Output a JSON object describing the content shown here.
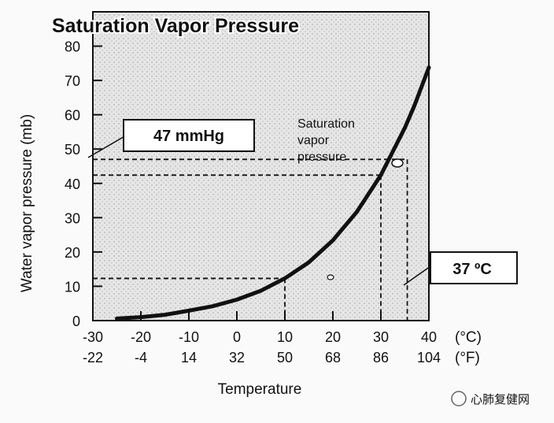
{
  "chart_data": {
    "type": "line",
    "title": "Saturation Vapor Pressure",
    "xlabel": "Temperature",
    "ylabel": "Water vapor pressure (mb)",
    "xlim": [
      -30,
      40
    ],
    "ylim": [
      0,
      90
    ],
    "x_ticks": [
      -30,
      -20,
      -10,
      0,
      10,
      20,
      30,
      40
    ],
    "x_tick_labels_c": [
      "-30",
      "-20",
      "-10",
      "0",
      "10",
      "20",
      "30",
      "40"
    ],
    "x_tick_labels_f": [
      "-22",
      "-4",
      "14",
      "32",
      "50",
      "68",
      "86",
      "104"
    ],
    "unit_c": "(°C)",
    "unit_f": "(°F)",
    "y_ticks": [
      0,
      10,
      20,
      30,
      40,
      50,
      60,
      70,
      80
    ],
    "y_tick_labels": [
      "0",
      "10",
      "20",
      "30",
      "40",
      "50",
      "60",
      "70",
      "80"
    ],
    "series": [
      {
        "name": "Saturation vapor pressure",
        "x": [
          -25,
          -20,
          -15,
          -10,
          -5,
          0,
          5,
          10,
          15,
          20,
          25,
          30,
          35,
          37,
          40
        ],
        "y": [
          0.6,
          1.0,
          1.7,
          2.9,
          4.2,
          6.1,
          8.7,
          12.3,
          17.0,
          23.4,
          31.7,
          42.4,
          56.2,
          62.7,
          73.8
        ]
      }
    ],
    "curve_label": "Saturation vapor pressure",
    "reference_lines": [
      {
        "x": 10,
        "y": 12.3
      },
      {
        "x": 30,
        "y": 42.4
      },
      {
        "x": 35.5,
        "y": 47
      }
    ],
    "annotations": {
      "pressure_box": "47 mmHg",
      "temperature_box": "37 ºC"
    }
  },
  "watermark": "心肺复健网"
}
